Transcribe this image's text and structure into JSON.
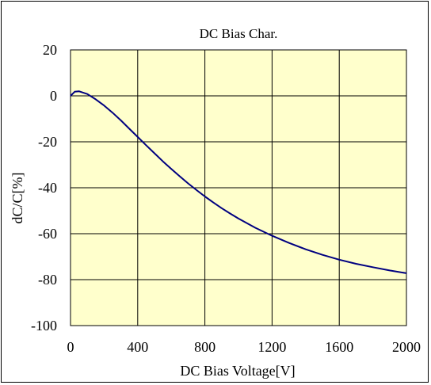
{
  "chart_data": {
    "type": "line",
    "title": "DC Bias Char.",
    "xlabel": "DC Bias Voltage[V]",
    "ylabel": "dC/C[%]",
    "xlim": [
      0,
      2000
    ],
    "ylim": [
      -100,
      20
    ],
    "xticks": [
      0,
      400,
      800,
      1200,
      1600,
      2000
    ],
    "yticks": [
      20,
      0,
      -20,
      -40,
      -60,
      -80,
      -100
    ],
    "grid": true,
    "plot_background": "#ffffcc",
    "series": [
      {
        "color": "#000080",
        "x": [
          0,
          25,
          50,
          100,
          150,
          200,
          250,
          300,
          350,
          400,
          450,
          500,
          550,
          600,
          650,
          700,
          750,
          800,
          850,
          900,
          950,
          1000,
          1100,
          1200,
          1300,
          1400,
          1500,
          1600,
          1700,
          1800,
          1900,
          2000
        ],
        "y": [
          0,
          1.8,
          2.0,
          0.8,
          -1.5,
          -4.2,
          -7.3,
          -10.7,
          -14.3,
          -17.9,
          -21.5,
          -25.0,
          -28.5,
          -31.8,
          -35.0,
          -38.1,
          -41.0,
          -43.8,
          -46.4,
          -48.9,
          -51.2,
          -53.4,
          -57.4,
          -60.9,
          -64.0,
          -66.8,
          -69.2,
          -71.3,
          -73.1,
          -74.6,
          -76.0,
          -77.2
        ]
      }
    ]
  }
}
